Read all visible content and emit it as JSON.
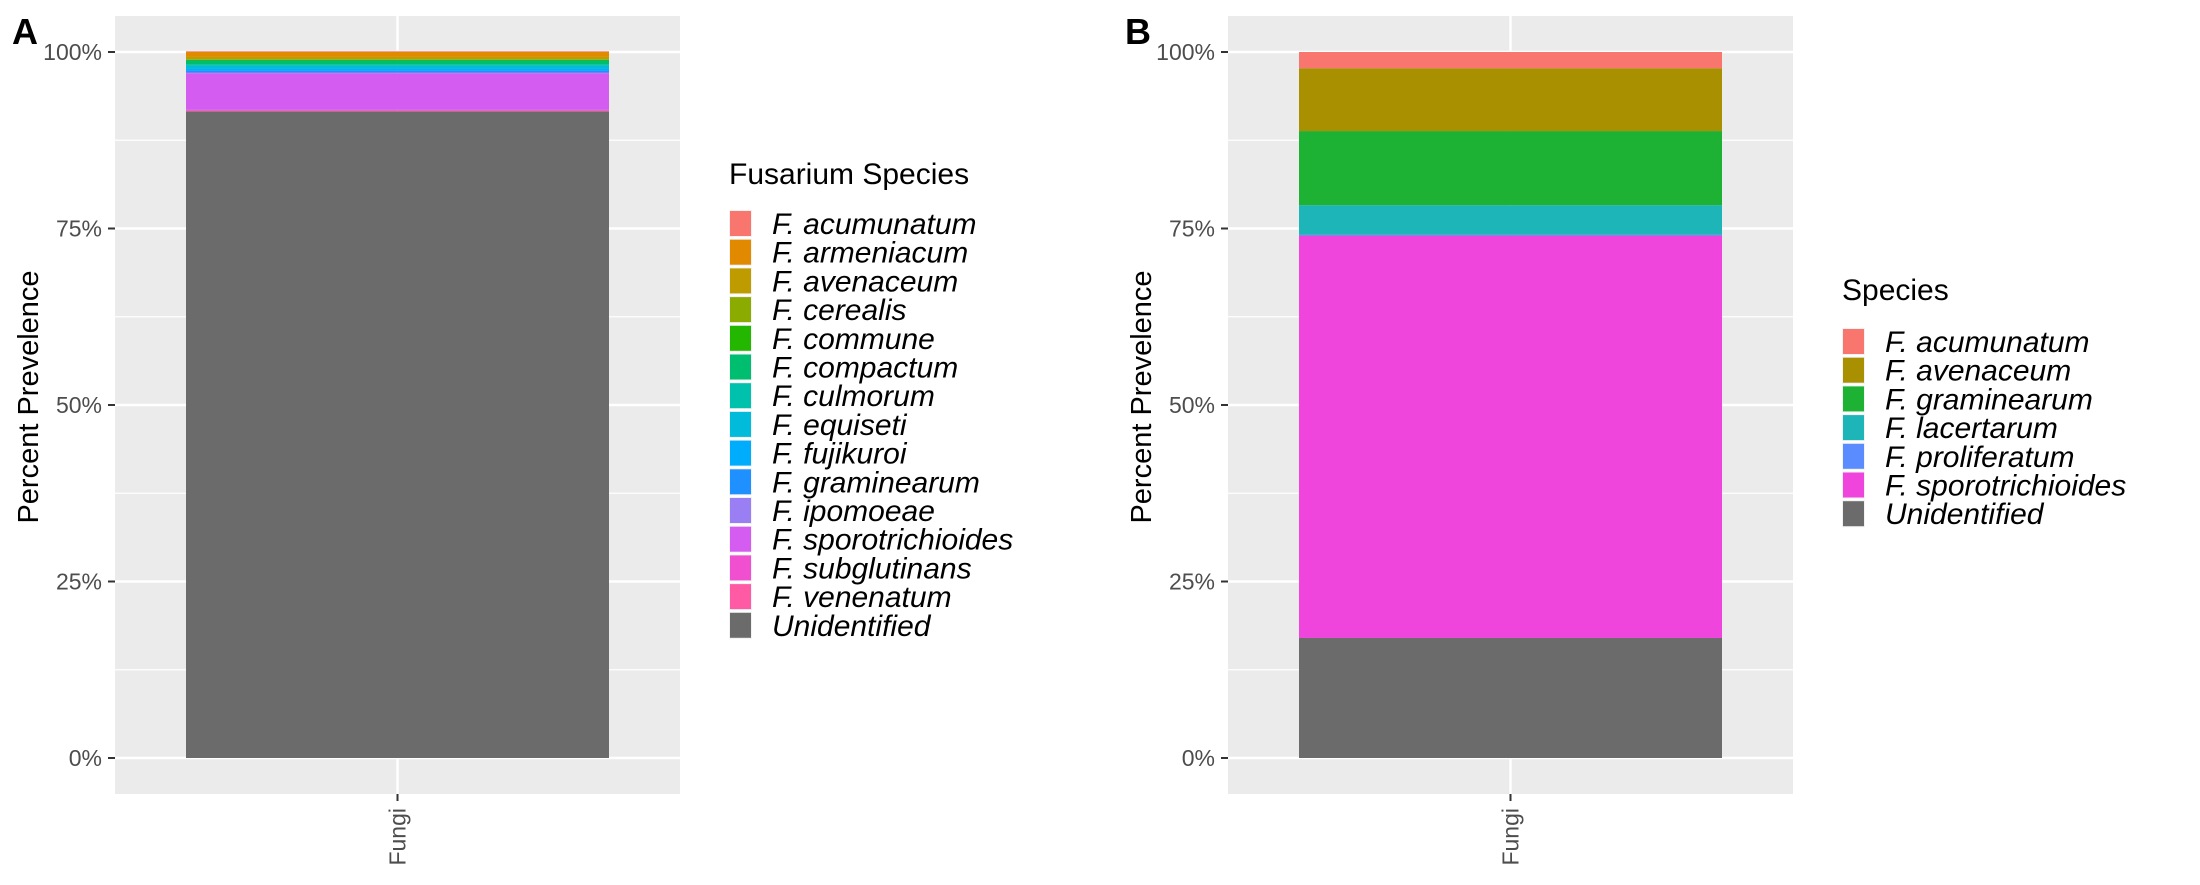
{
  "chart_data": [
    {
      "type": "bar",
      "stacked": true,
      "panel_tag": "A",
      "categories": [
        "Fungi"
      ],
      "ylabel": "Percent Prevelence",
      "xlabel": "",
      "ylim": [
        0,
        100
      ],
      "y_ticks": [
        0,
        25,
        50,
        75,
        100
      ],
      "y_tick_labels": [
        "0%",
        "25%",
        "50%",
        "75%",
        "100%"
      ],
      "grid": true,
      "legend_title": "Fusarium Species",
      "legend_position": "right",
      "series": [
        {
          "name": "F. acumunatum",
          "color": "#F8766D",
          "values": [
            0.1
          ]
        },
        {
          "name": "F. armeniacum",
          "color": "#E18A00",
          "values": [
            0.7
          ]
        },
        {
          "name": "F. avenaceum",
          "color": "#BE9C00",
          "values": [
            0.3
          ]
        },
        {
          "name": "F. cerealis",
          "color": "#8CAB00",
          "values": [
            0.1
          ]
        },
        {
          "name": "F. commune",
          "color": "#24B700",
          "values": [
            0.1
          ]
        },
        {
          "name": "F. compactum",
          "color": "#00BE70",
          "values": [
            0.6
          ]
        },
        {
          "name": "F. culmorum",
          "color": "#00C1AB",
          "values": [
            0.1
          ]
        },
        {
          "name": "F. equiseti",
          "color": "#00BBDA",
          "values": [
            0.5
          ]
        },
        {
          "name": "F. fujikuroi",
          "color": "#00ACFC",
          "values": [
            0.2
          ]
        },
        {
          "name": "F. graminearum",
          "color": "#1E90FF",
          "values": [
            0.3
          ]
        },
        {
          "name": "F. ipomoeae",
          "color": "#9A7FF4",
          "values": [
            0.1
          ]
        },
        {
          "name": "F. sporotrichioides",
          "color": "#D55CF0",
          "values": [
            5.2
          ]
        },
        {
          "name": "F. subglutinans",
          "color": "#F050D0",
          "values": [
            0.1
          ]
        },
        {
          "name": "F. venenatum",
          "color": "#FF5BA4",
          "values": [
            0.1
          ]
        },
        {
          "name": "Unidentified",
          "color": "#6B6B6B",
          "values": [
            91.6
          ]
        }
      ]
    },
    {
      "type": "bar",
      "stacked": true,
      "panel_tag": "B",
      "categories": [
        "Fungi"
      ],
      "ylabel": "Percent Prevelence",
      "xlabel": "",
      "ylim": [
        0,
        100
      ],
      "y_ticks": [
        0,
        25,
        50,
        75,
        100
      ],
      "y_tick_labels": [
        "0%",
        "25%",
        "50%",
        "75%",
        "100%"
      ],
      "grid": true,
      "legend_title": "Species",
      "legend_position": "right",
      "series": [
        {
          "name": "F. acumunatum",
          "color": "#F8766D",
          "values": [
            2.3
          ]
        },
        {
          "name": "F. avenaceum",
          "color": "#A89000",
          "values": [
            8.9
          ]
        },
        {
          "name": "F. graminearum",
          "color": "#1DB233",
          "values": [
            10.5
          ]
        },
        {
          "name": "F. lacertarum",
          "color": "#1DB5B8",
          "values": [
            4.2
          ]
        },
        {
          "name": "F. proliferatum",
          "color": "#5B8CFF",
          "values": [
            0.1
          ]
        },
        {
          "name": "F. sporotrichioides",
          "color": "#F045DC",
          "values": [
            57.0
          ]
        },
        {
          "name": "Unidentified",
          "color": "#6B6B6B",
          "values": [
            17.0
          ]
        }
      ]
    }
  ]
}
